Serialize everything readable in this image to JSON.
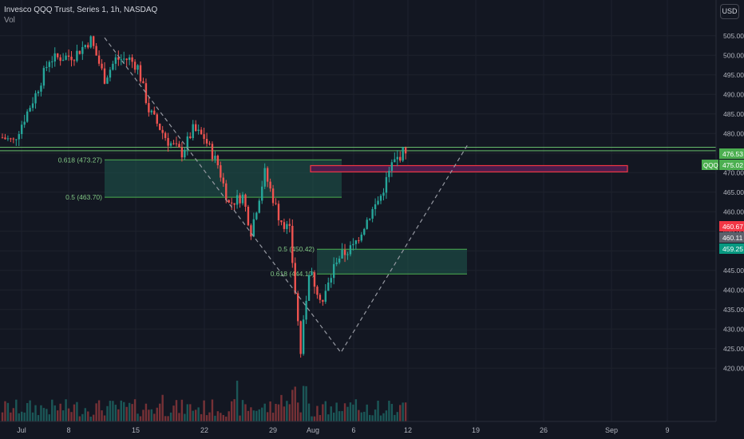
{
  "header": {
    "title": "Invesco QQQ Trust, Series 1, 1h, NASDAQ",
    "volume_label": "Vol",
    "currency_button": "USD"
  },
  "colors": {
    "background": "#131722",
    "up": "#26a69a",
    "down": "#ef5350",
    "fib_line": "#4caf50",
    "fib_fill": "#1f5a4e",
    "level_line": "#66bb6a",
    "zone_stroke": "#f23645",
    "zone_fill": "#4a1c4c",
    "dashed": "#9598a1"
  },
  "chart_data": {
    "type": "candlestick",
    "y_unit": "USD",
    "ylim": [
      417,
      508
    ],
    "y_ticks": [
      "505.00",
      "500.00",
      "495.00",
      "490.00",
      "485.00",
      "480.00",
      "475.00",
      "470.00",
      "465.00",
      "460.00",
      "455.00",
      "450.00",
      "445.00",
      "440.00",
      "435.00",
      "430.00",
      "425.00",
      "420.00"
    ],
    "x_ticks": [
      "Jul",
      "8",
      "15",
      "22",
      "29",
      "Aug",
      "6",
      "12",
      "19",
      "26",
      "Sep",
      "9"
    ],
    "price_badges": [
      {
        "text": "476.53",
        "color": "#4caf50"
      },
      {
        "text": "475.02",
        "color": "#4caf50"
      },
      {
        "text": "460.67",
        "color": "#f23645"
      },
      {
        "text": "460.11",
        "color": "#5d606b"
      },
      {
        "text": "459.25",
        "color": "#089981"
      }
    ],
    "symbol_badge": "QQQ",
    "horizontal_levels": [
      476.5,
      475.6
    ],
    "fib_zones": [
      {
        "label_top": "0.618 (473.27)",
        "label_bottom": "0.5 (463.70)",
        "top": 473.27,
        "bottom": 463.7
      },
      {
        "label_top": "0.5 (450.42)",
        "label_bottom": "0.618 (444.10)",
        "top": 450.42,
        "bottom": 444.1
      }
    ],
    "resistance_zone": {
      "top": 471.8,
      "bottom": 470.2
    },
    "waypoints": [
      {
        "t": 0,
        "p": 479
      },
      {
        "t": 4,
        "p": 478
      },
      {
        "t": 12,
        "p": 490
      },
      {
        "t": 17,
        "p": 499
      },
      {
        "t": 26,
        "p": 500
      },
      {
        "t": 32,
        "p": 504
      },
      {
        "t": 37,
        "p": 494
      },
      {
        "t": 41,
        "p": 499
      },
      {
        "t": 46,
        "p": 499
      },
      {
        "t": 49,
        "p": 497
      },
      {
        "t": 53,
        "p": 486
      },
      {
        "t": 60,
        "p": 478
      },
      {
        "t": 65,
        "p": 475
      },
      {
        "t": 69,
        "p": 481
      },
      {
        "t": 73,
        "p": 479
      },
      {
        "t": 78,
        "p": 472
      },
      {
        "t": 82,
        "p": 462
      },
      {
        "t": 87,
        "p": 464
      },
      {
        "t": 90,
        "p": 455
      },
      {
        "t": 95,
        "p": 470
      },
      {
        "t": 100,
        "p": 459
      },
      {
        "t": 104,
        "p": 455
      },
      {
        "t": 108,
        "p": 424
      },
      {
        "t": 111,
        "p": 445
      },
      {
        "t": 116,
        "p": 437
      },
      {
        "t": 121,
        "p": 448
      },
      {
        "t": 127,
        "p": 451
      },
      {
        "t": 132,
        "p": 458
      },
      {
        "t": 137,
        "p": 464
      },
      {
        "t": 141,
        "p": 472
      },
      {
        "t": 146,
        "p": 476
      }
    ]
  }
}
